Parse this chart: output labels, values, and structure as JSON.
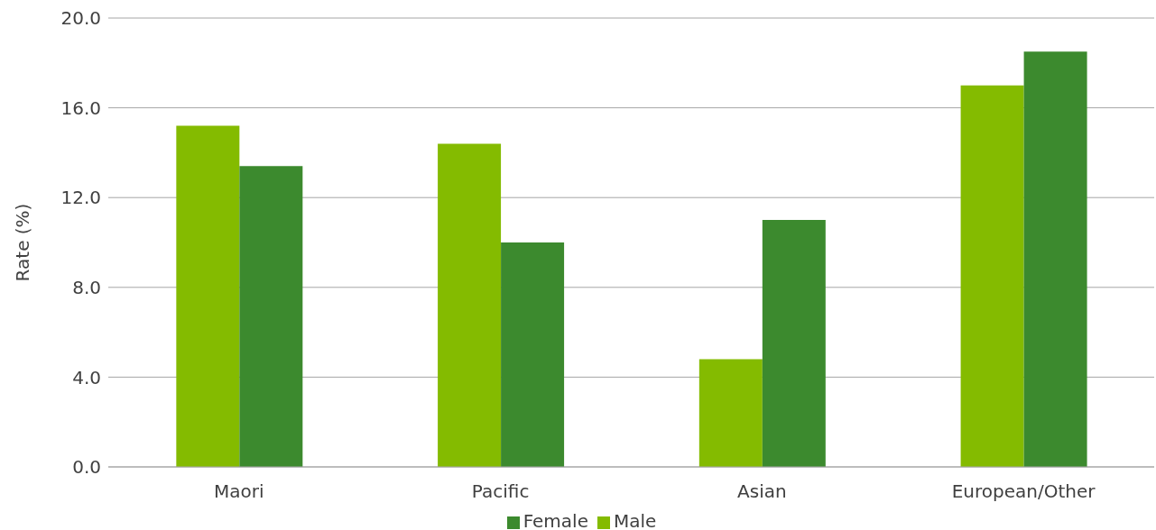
{
  "chart_data": {
    "type": "bar",
    "ylabel": "Rate (%)",
    "categories": [
      "Maori",
      "Pacific",
      "Asian",
      "European/Other"
    ],
    "series": [
      {
        "name": "Male",
        "color": "#84bb00",
        "values": [
          15.2,
          14.4,
          4.8,
          17.0
        ]
      },
      {
        "name": "Female",
        "color": "#3c8a2e",
        "values": [
          13.4,
          10.0,
          11.0,
          18.5
        ]
      }
    ],
    "ylim": [
      0,
      20
    ],
    "yticks": [
      {
        "value": 0,
        "label": "0.0"
      },
      {
        "value": 4,
        "label": "4.0"
      },
      {
        "value": 8,
        "label": "8.0"
      },
      {
        "value": 12,
        "label": "12.0"
      },
      {
        "value": 16,
        "label": "16.0"
      },
      {
        "value": 20,
        "label": "20.0"
      }
    ],
    "grid": "y",
    "legend": "bottom"
  }
}
